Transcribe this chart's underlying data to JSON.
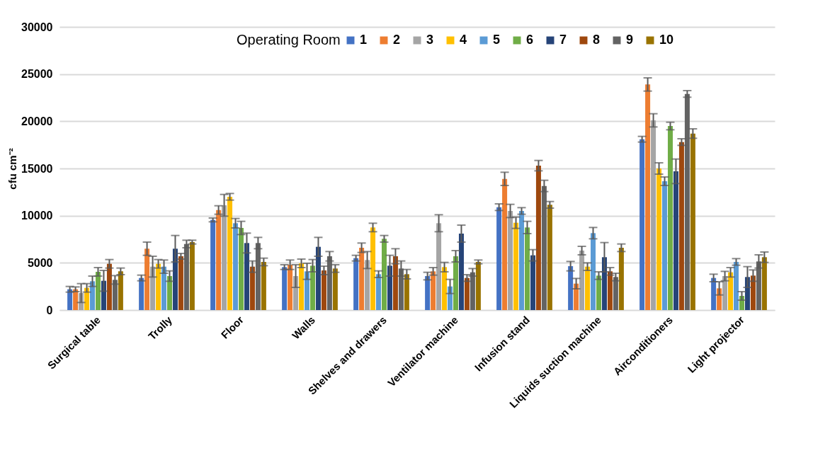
{
  "chart_data": {
    "type": "bar",
    "ylabel": "cfu cm⁻²",
    "legend_title": "Operating Room",
    "legend": "top",
    "grid": "y",
    "categories": [
      "Surgical table",
      "Trolly",
      "Floor",
      "Walls",
      "Shelves and drawers",
      "Ventilator machine",
      "Infusion stand",
      "Liquids suction machine",
      "Airconditioners",
      "Light projector"
    ],
    "ylim": [
      0,
      30000
    ],
    "yticks": [
      0,
      5000,
      10000,
      15000,
      20000,
      25000,
      30000
    ],
    "series": [
      {
        "name": "1",
        "color": "#4472c4",
        "values": [
          2200,
          3400,
          9550,
          4550,
          5500,
          3600,
          10900,
          4650,
          18100,
          3400
        ],
        "errors": [
          300,
          300,
          200,
          250,
          300,
          400,
          350,
          500,
          300,
          400
        ]
      },
      {
        "name": "2",
        "color": "#ed7d31",
        "values": [
          2200,
          6500,
          10600,
          4800,
          6600,
          4100,
          13900,
          2800,
          23900,
          2300
        ],
        "errors": [
          250,
          700,
          450,
          500,
          500,
          400,
          700,
          550,
          700,
          700
        ]
      },
      {
        "name": "3",
        "color": "#a5a5a5",
        "values": [
          1800,
          4600,
          11100,
          3600,
          5300,
          9200,
          10500,
          6300,
          20100,
          3600
        ],
        "errors": [
          1000,
          1100,
          1150,
          1200,
          900,
          900,
          700,
          450,
          700,
          500
        ]
      },
      {
        "name": "4",
        "color": "#ffc000",
        "values": [
          2350,
          4900,
          12000,
          4950,
          8750,
          4550,
          9250,
          4600,
          15000,
          4000
        ],
        "errors": [
          450,
          450,
          350,
          450,
          450,
          500,
          600,
          400,
          600,
          500
        ]
      },
      {
        "name": "5",
        "color": "#5b9bd5",
        "values": [
          3050,
          4600,
          9200,
          4100,
          3800,
          2500,
          10500,
          8150,
          13650,
          5100
        ],
        "errors": [
          550,
          700,
          500,
          850,
          350,
          750,
          350,
          600,
          450,
          350
        ]
      },
      {
        "name": "6",
        "color": "#70ad47",
        "values": [
          4050,
          3600,
          8700,
          4700,
          7550,
          5700,
          8750,
          3650,
          19500,
          1500
        ],
        "errors": [
          450,
          550,
          700,
          650,
          350,
          600,
          650,
          400,
          400,
          450
        ]
      },
      {
        "name": "7",
        "color": "#264478",
        "values": [
          3100,
          6500,
          7100,
          6700,
          4700,
          8100,
          5800,
          5600,
          14700,
          3500
        ],
        "errors": [
          1100,
          1400,
          1050,
          1000,
          1100,
          900,
          600,
          1550,
          1300,
          1100
        ]
      },
      {
        "name": "8",
        "color": "#9e480e",
        "values": [
          4900,
          5700,
          4600,
          4200,
          5700,
          3400,
          15300,
          4100,
          17800,
          3650
        ],
        "errors": [
          450,
          300,
          600,
          450,
          800,
          350,
          550,
          400,
          350,
          600
        ]
      },
      {
        "name": "9",
        "color": "#636363",
        "values": [
          3200,
          7000,
          7100,
          5700,
          4400,
          4000,
          13150,
          3500,
          22900,
          5150
        ],
        "errors": [
          450,
          400,
          600,
          500,
          800,
          400,
          600,
          400,
          350,
          700
        ]
      },
      {
        "name": "10",
        "color": "#997300",
        "values": [
          4100,
          7200,
          5100,
          4400,
          3800,
          5100,
          11150,
          6600,
          18700,
          5600
        ],
        "errors": [
          350,
          200,
          400,
          400,
          500,
          200,
          350,
          400,
          500,
          550
        ]
      }
    ]
  }
}
